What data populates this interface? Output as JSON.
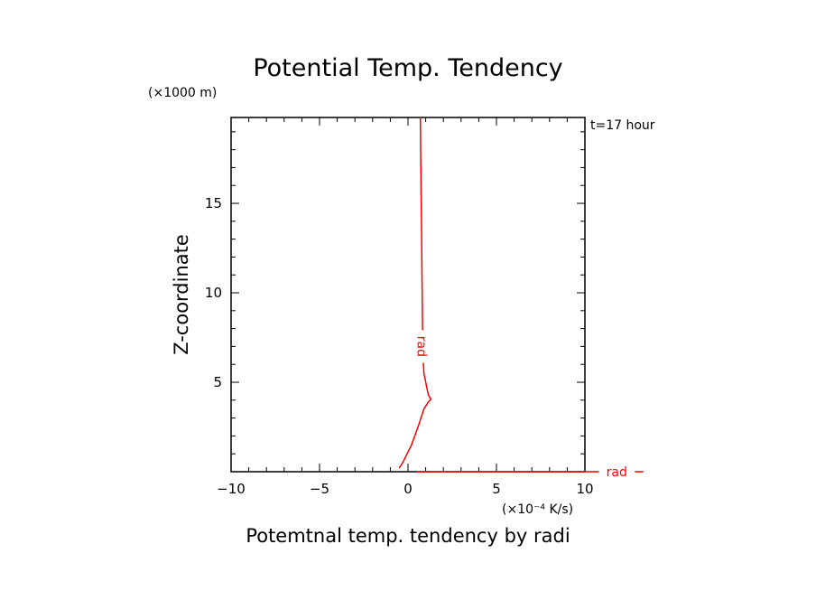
{
  "chart_data": {
    "type": "line",
    "title": "Potential Temp. Tendency",
    "xlabel": "Potemtnal temp. tendency by radi",
    "ylabel": "Z-coordinate",
    "x_unit": "(×10⁻⁴ K/s)",
    "y_unit": "(×1000 m)",
    "time_label": "t=17 hour",
    "xlim": [
      -10,
      10
    ],
    "ylim": [
      0,
      19.8
    ],
    "x_ticks": [
      -10,
      -5,
      0,
      5,
      10
    ],
    "x_tick_labels": [
      "−10",
      "−5",
      "0",
      "5",
      "10"
    ],
    "y_ticks": [
      5,
      10,
      15
    ],
    "y_tick_labels": [
      "5",
      "10",
      "15"
    ],
    "grid": false,
    "series": [
      {
        "name": "rad",
        "color": "#ff0000",
        "x": [
          -0.5,
          -0.3,
          0.2,
          0.6,
          0.9,
          1.15,
          1.3,
          1.15,
          0.9,
          0.85,
          0.82,
          0.8,
          0.78,
          0.75,
          0.72,
          0.7
        ],
        "y": [
          0.2,
          0.5,
          1.5,
          2.6,
          3.5,
          3.9,
          4.05,
          4.3,
          5.5,
          6.5,
          8.0,
          10.0,
          12.0,
          15.0,
          17.5,
          19.8
        ]
      },
      {
        "name": "rad",
        "color": "#ff0000",
        "x": [
          0.5,
          13.3
        ],
        "y": [
          0,
          0
        ]
      }
    ]
  }
}
